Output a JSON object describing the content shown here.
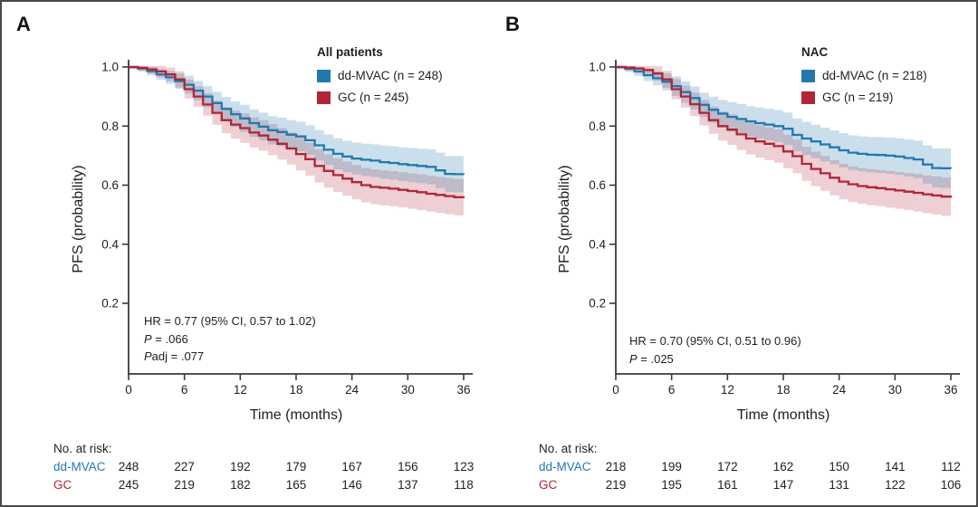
{
  "colors": {
    "dd_mvac_blue": "#2279ad",
    "gc_red": "#b22437",
    "axis": "#3a3a3a",
    "text": "#1f1f1f"
  },
  "chart_data": [
    {
      "type": "line",
      "subtype": "kaplan-meier-step",
      "panel_label": "A",
      "title": "All patients",
      "xlabel": "Time (months)",
      "ylabel": "PFS (probability)",
      "xlim": [
        0,
        36
      ],
      "ylim": [
        0,
        1.02
      ],
      "grid": false,
      "legend_position": "top-right-inside",
      "xticks": [
        0,
        6,
        12,
        18,
        24,
        30,
        36
      ],
      "xtick_labels": [
        "0",
        "6",
        "12",
        "18",
        "24",
        "30",
        "36"
      ],
      "yticks": [
        1.0,
        0.8,
        0.6,
        0.4,
        0.2
      ],
      "ytick_labels": [
        "1.0",
        "0.8",
        "0.6",
        "0.4",
        "0.2"
      ],
      "legend": {
        "title": "All patients",
        "items": [
          {
            "label": "dd-MVAC (n = 248)",
            "color": "#2279ad"
          },
          {
            "label": "GC (n = 245)",
            "color": "#b22437"
          }
        ]
      },
      "annotation": {
        "lines": [
          {
            "parts": [
              {
                "t": "HR = 0.77 (95% CI, 0.57 to 1.02)"
              }
            ]
          },
          {
            "parts": [
              {
                "t": "P",
                "i": true
              },
              {
                "t": " = .066"
              }
            ]
          },
          {
            "parts": [
              {
                "t": "P",
                "i": true
              },
              {
                "t": "adj = .077"
              }
            ]
          }
        ]
      },
      "series": [
        {
          "name": "dd-MVAC",
          "n": 248,
          "color": "#2279ad",
          "x": [
            0,
            1,
            2,
            3,
            4,
            5,
            6,
            7,
            8,
            9,
            10,
            11,
            12,
            13,
            14,
            15,
            16,
            17,
            18,
            19,
            20,
            21,
            22,
            23,
            24,
            25,
            26,
            27,
            28,
            29,
            30,
            31,
            32,
            33,
            34,
            35,
            36
          ],
          "y": [
            1.0,
            0.995,
            0.986,
            0.975,
            0.965,
            0.952,
            0.94,
            0.92,
            0.9,
            0.878,
            0.858,
            0.84,
            0.826,
            0.81,
            0.798,
            0.786,
            0.78,
            0.771,
            0.765,
            0.752,
            0.735,
            0.72,
            0.706,
            0.697,
            0.69,
            0.686,
            0.683,
            0.678,
            0.675,
            0.671,
            0.668,
            0.665,
            0.662,
            0.65,
            0.638,
            0.637,
            0.636
          ],
          "ci": {
            "t": [
              0,
              6,
              12,
              18,
              24,
              30,
              36
            ],
            "hw": [
              0.006,
              0.03,
              0.046,
              0.05,
              0.054,
              0.058,
              0.062
            ]
          }
        },
        {
          "name": "GC",
          "n": 245,
          "color": "#b22437",
          "x": [
            0,
            1,
            2,
            3,
            4,
            5,
            6,
            7,
            8,
            9,
            10,
            11,
            12,
            13,
            14,
            15,
            16,
            17,
            18,
            19,
            20,
            21,
            22,
            23,
            24,
            25,
            26,
            27,
            28,
            29,
            30,
            31,
            32,
            33,
            34,
            35,
            36
          ],
          "y": [
            1.0,
            0.997,
            0.992,
            0.985,
            0.975,
            0.958,
            0.925,
            0.9,
            0.873,
            0.845,
            0.82,
            0.805,
            0.793,
            0.778,
            0.768,
            0.754,
            0.74,
            0.724,
            0.705,
            0.688,
            0.665,
            0.648,
            0.634,
            0.622,
            0.61,
            0.6,
            0.594,
            0.591,
            0.588,
            0.584,
            0.58,
            0.576,
            0.571,
            0.567,
            0.563,
            0.559,
            0.556
          ],
          "ci": {
            "t": [
              0,
              6,
              12,
              18,
              24,
              30,
              36
            ],
            "hw": [
              0.006,
              0.032,
              0.05,
              0.055,
              0.058,
              0.06,
              0.062
            ]
          }
        }
      ],
      "risk_table": {
        "header": "No. at risk:",
        "t": [
          0,
          6,
          12,
          18,
          24,
          30,
          36
        ],
        "rows": [
          {
            "label": "dd-MVAC",
            "color": "#2279ad",
            "values": [
              "248",
              "227",
              "192",
              "179",
              "167",
              "156",
              "123"
            ]
          },
          {
            "label": "GC",
            "color": "#b22437",
            "values": [
              "245",
              "219",
              "182",
              "165",
              "146",
              "137",
              "118"
            ]
          }
        ]
      }
    },
    {
      "type": "line",
      "subtype": "kaplan-meier-step",
      "panel_label": "B",
      "title": "NAC",
      "xlabel": "Time (months)",
      "ylabel": "PFS (probability)",
      "xlim": [
        0,
        36
      ],
      "ylim": [
        0,
        1.02
      ],
      "grid": false,
      "legend_position": "top-right-inside",
      "xticks": [
        0,
        6,
        12,
        18,
        24,
        30,
        36
      ],
      "xtick_labels": [
        "0",
        "6",
        "12",
        "18",
        "24",
        "30",
        "36"
      ],
      "yticks": [
        1.0,
        0.8,
        0.6,
        0.4,
        0.2
      ],
      "ytick_labels": [
        "1.0",
        "0.8",
        "0.6",
        "0.4",
        "0.2"
      ],
      "legend": {
        "title": "NAC",
        "items": [
          {
            "label": "dd-MVAC (n = 218)",
            "color": "#2279ad"
          },
          {
            "label": "GC (n = 219)",
            "color": "#b22437"
          }
        ]
      },
      "annotation": {
        "lines": [
          {
            "parts": [
              {
                "t": "HR = 0.70 (95% CI, 0.51 to 0.96)"
              }
            ]
          },
          {
            "parts": [
              {
                "t": "P",
                "i": true
              },
              {
                "t": " = .025"
              }
            ]
          }
        ]
      },
      "series": [
        {
          "name": "dd-MVAC",
          "n": 218,
          "color": "#2279ad",
          "x": [
            0,
            1,
            2,
            3,
            4,
            5,
            6,
            7,
            8,
            9,
            10,
            11,
            12,
            13,
            14,
            15,
            16,
            17,
            18,
            19,
            20,
            21,
            22,
            23,
            24,
            25,
            26,
            27,
            28,
            29,
            30,
            31,
            32,
            33,
            34,
            35,
            36
          ],
          "y": [
            1.0,
            0.994,
            0.985,
            0.972,
            0.962,
            0.95,
            0.935,
            0.915,
            0.895,
            0.872,
            0.855,
            0.842,
            0.831,
            0.824,
            0.816,
            0.81,
            0.805,
            0.8,
            0.791,
            0.77,
            0.758,
            0.748,
            0.738,
            0.728,
            0.718,
            0.71,
            0.706,
            0.703,
            0.702,
            0.7,
            0.697,
            0.692,
            0.687,
            0.67,
            0.658,
            0.657,
            0.656
          ],
          "ci": {
            "t": [
              0,
              6,
              12,
              18,
              24,
              30,
              36
            ],
            "hw": [
              0.006,
              0.033,
              0.05,
              0.055,
              0.058,
              0.062,
              0.068
            ]
          }
        },
        {
          "name": "GC",
          "n": 219,
          "color": "#b22437",
          "x": [
            0,
            1,
            2,
            3,
            4,
            5,
            6,
            7,
            8,
            9,
            10,
            11,
            12,
            13,
            14,
            15,
            16,
            17,
            18,
            19,
            20,
            21,
            22,
            23,
            24,
            25,
            26,
            27,
            28,
            29,
            30,
            31,
            32,
            33,
            34,
            35,
            36
          ],
          "y": [
            1.0,
            0.998,
            0.995,
            0.99,
            0.978,
            0.958,
            0.925,
            0.9,
            0.874,
            0.845,
            0.82,
            0.8,
            0.788,
            0.772,
            0.758,
            0.748,
            0.74,
            0.732,
            0.714,
            0.698,
            0.672,
            0.655,
            0.64,
            0.625,
            0.612,
            0.603,
            0.597,
            0.593,
            0.59,
            0.586,
            0.582,
            0.578,
            0.574,
            0.569,
            0.565,
            0.561,
            0.558
          ],
          "ci": {
            "t": [
              0,
              6,
              12,
              18,
              24,
              30,
              36
            ],
            "hw": [
              0.006,
              0.034,
              0.052,
              0.057,
              0.06,
              0.062,
              0.066
            ]
          }
        }
      ],
      "risk_table": {
        "header": "No. at risk:",
        "t": [
          0,
          6,
          12,
          18,
          24,
          30,
          36
        ],
        "rows": [
          {
            "label": "dd-MVAC",
            "color": "#2279ad",
            "values": [
              "218",
              "199",
              "172",
              "162",
              "150",
              "141",
              "112"
            ]
          },
          {
            "label": "GC",
            "color": "#b22437",
            "values": [
              "219",
              "195",
              "161",
              "147",
              "131",
              "122",
              "106"
            ]
          }
        ]
      }
    }
  ]
}
